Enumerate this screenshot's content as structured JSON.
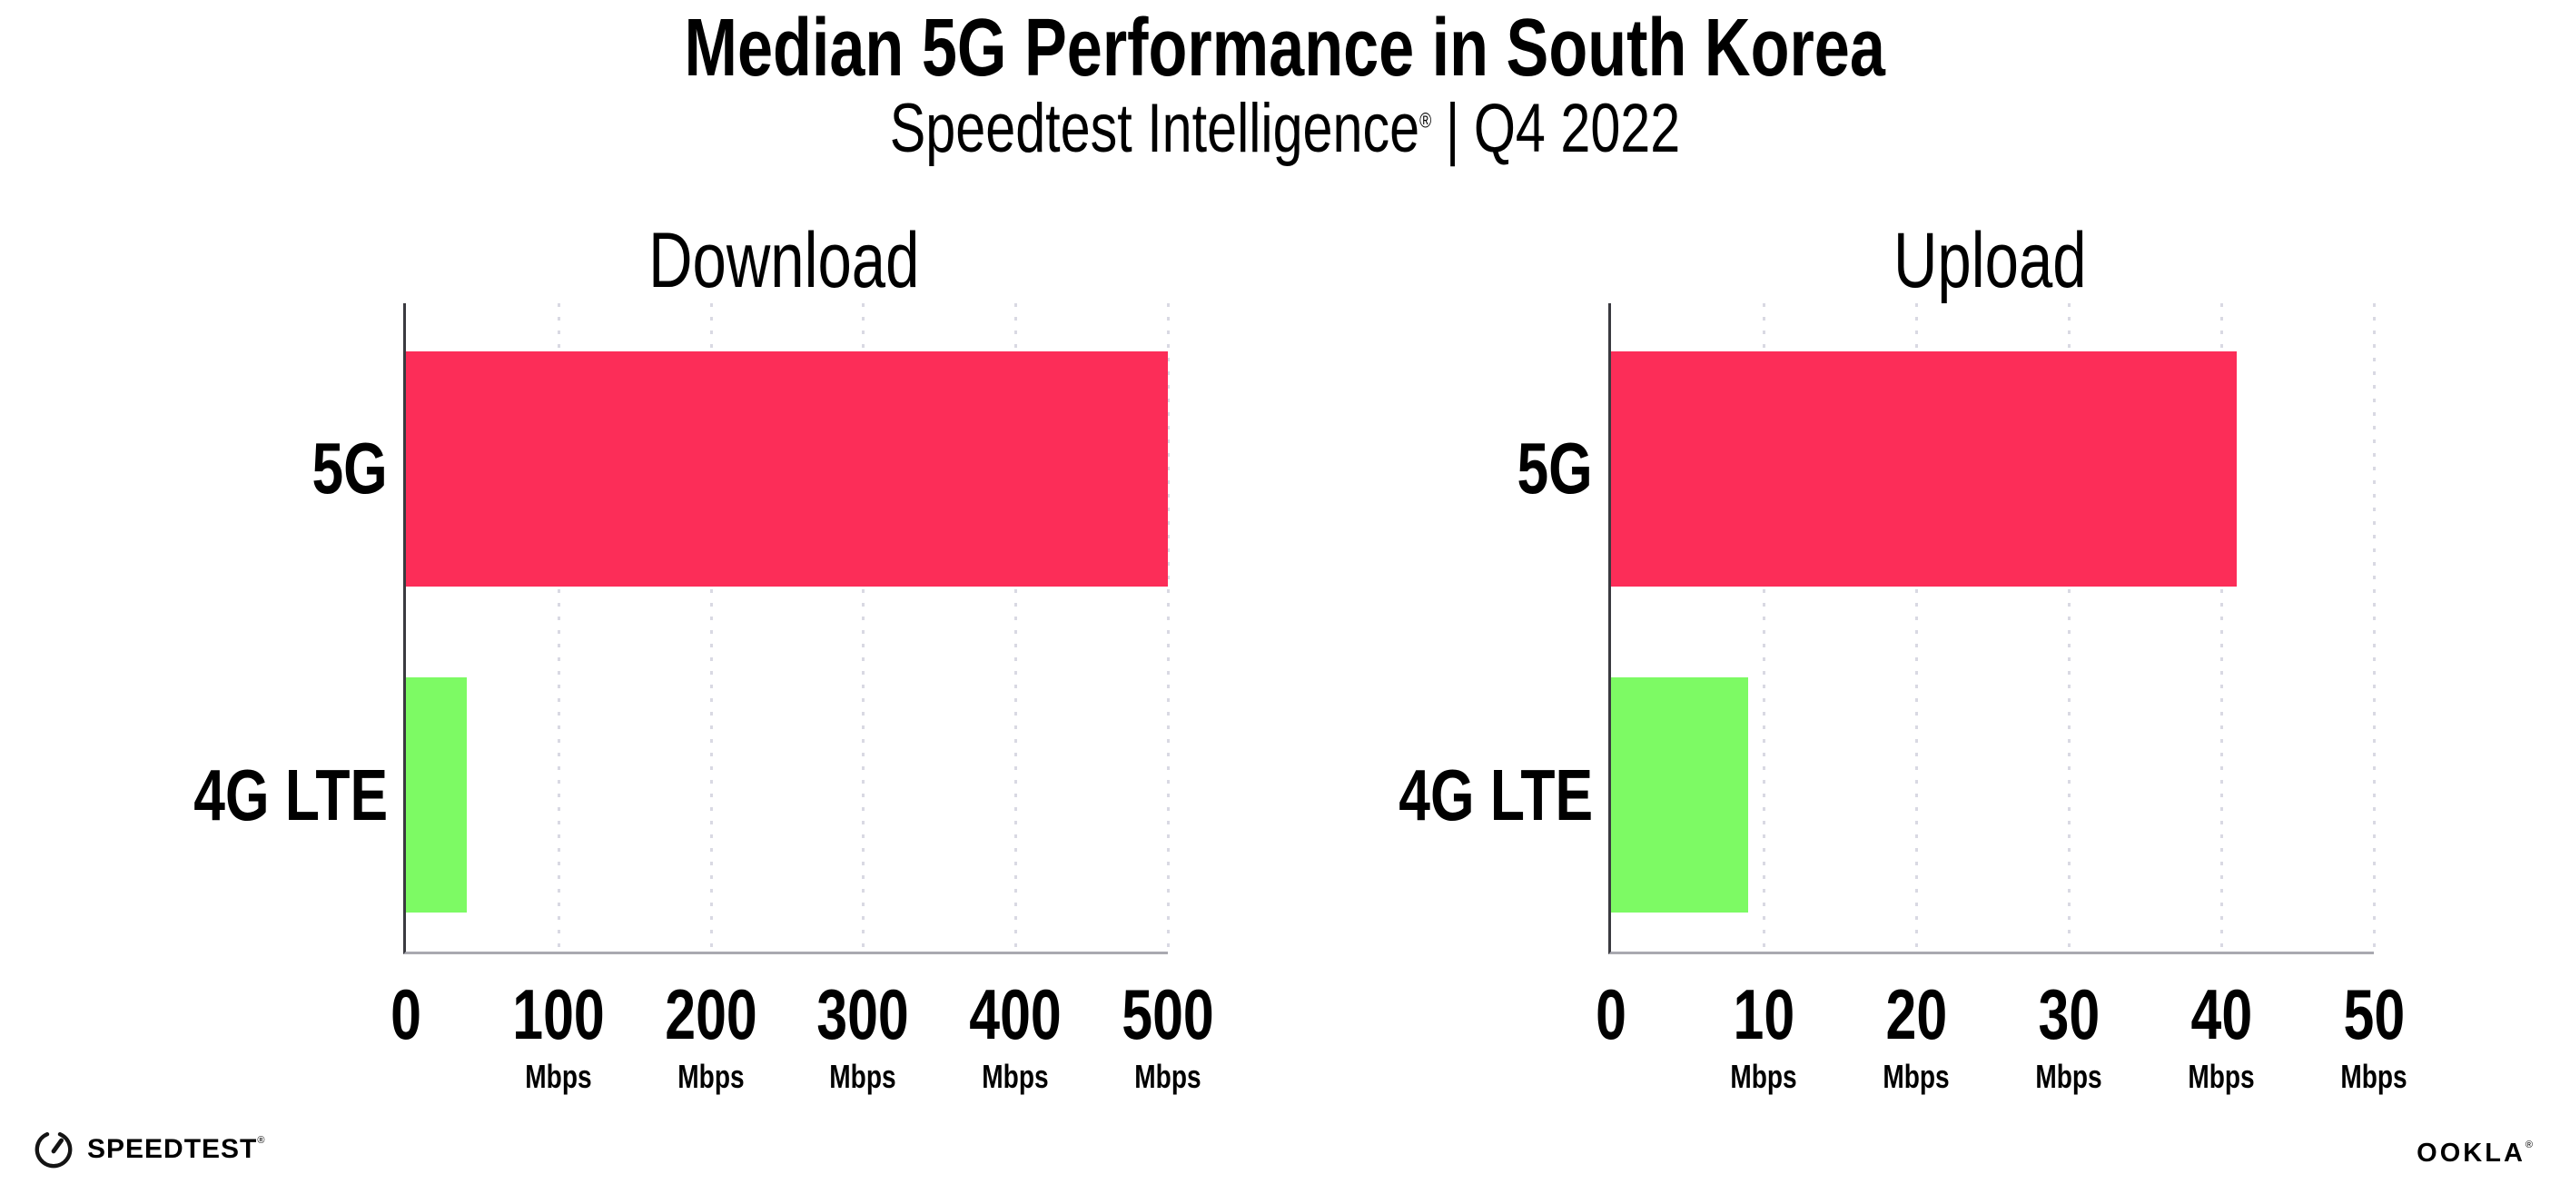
{
  "header": {
    "title": "Median 5G Performance in South Korea",
    "subtitle": {
      "brand": "Speedtest Intelligence",
      "reg": "®",
      "separator": "|",
      "period": "Q4 2022"
    }
  },
  "chart_data": [
    {
      "type": "bar",
      "orientation": "horizontal",
      "title": "Download",
      "categories": [
        "5G",
        "4G LTE"
      ],
      "values": [
        500,
        40
      ],
      "unit": "Mbps",
      "xmax": 500,
      "xlim": [
        0,
        500
      ],
      "grid": "dotted-vertical",
      "legend": "none",
      "bar_colors": [
        "#FC2D58",
        "#7DFA64"
      ],
      "ticks": [
        {
          "label": "0",
          "unit": ""
        },
        {
          "label": "100",
          "unit": "Mbps"
        },
        {
          "label": "200",
          "unit": "Mbps"
        },
        {
          "label": "300",
          "unit": "Mbps"
        },
        {
          "label": "400",
          "unit": "Mbps"
        },
        {
          "label": "500",
          "unit": "Mbps"
        }
      ]
    },
    {
      "type": "bar",
      "orientation": "horizontal",
      "title": "Upload",
      "categories": [
        "5G",
        "4G LTE"
      ],
      "values": [
        41,
        9
      ],
      "unit": "Mbps",
      "xmax": 50,
      "xlim": [
        0,
        50
      ],
      "grid": "dotted-vertical",
      "legend": "none",
      "bar_colors": [
        "#FC2D58",
        "#7DFA64"
      ],
      "ticks": [
        {
          "label": "0",
          "unit": ""
        },
        {
          "label": "10",
          "unit": "Mbps"
        },
        {
          "label": "20",
          "unit": "Mbps"
        },
        {
          "label": "30",
          "unit": "Mbps"
        },
        {
          "label": "40",
          "unit": "Mbps"
        },
        {
          "label": "50",
          "unit": "Mbps"
        }
      ]
    }
  ],
  "footer": {
    "speedtest": "SPEEDTEST",
    "speedtest_mark": "®",
    "ookla": "OOKLA",
    "ookla_mark": "®"
  },
  "colors": {
    "bar_5g": "#FC2D58",
    "bar_4g_lte": "#7DFA64",
    "axis_y": "#3A3A40",
    "axis_x": "#A9A9B0",
    "gridline": "#D9D9E3",
    "text": "#000000",
    "background": "#FFFFFF"
  }
}
